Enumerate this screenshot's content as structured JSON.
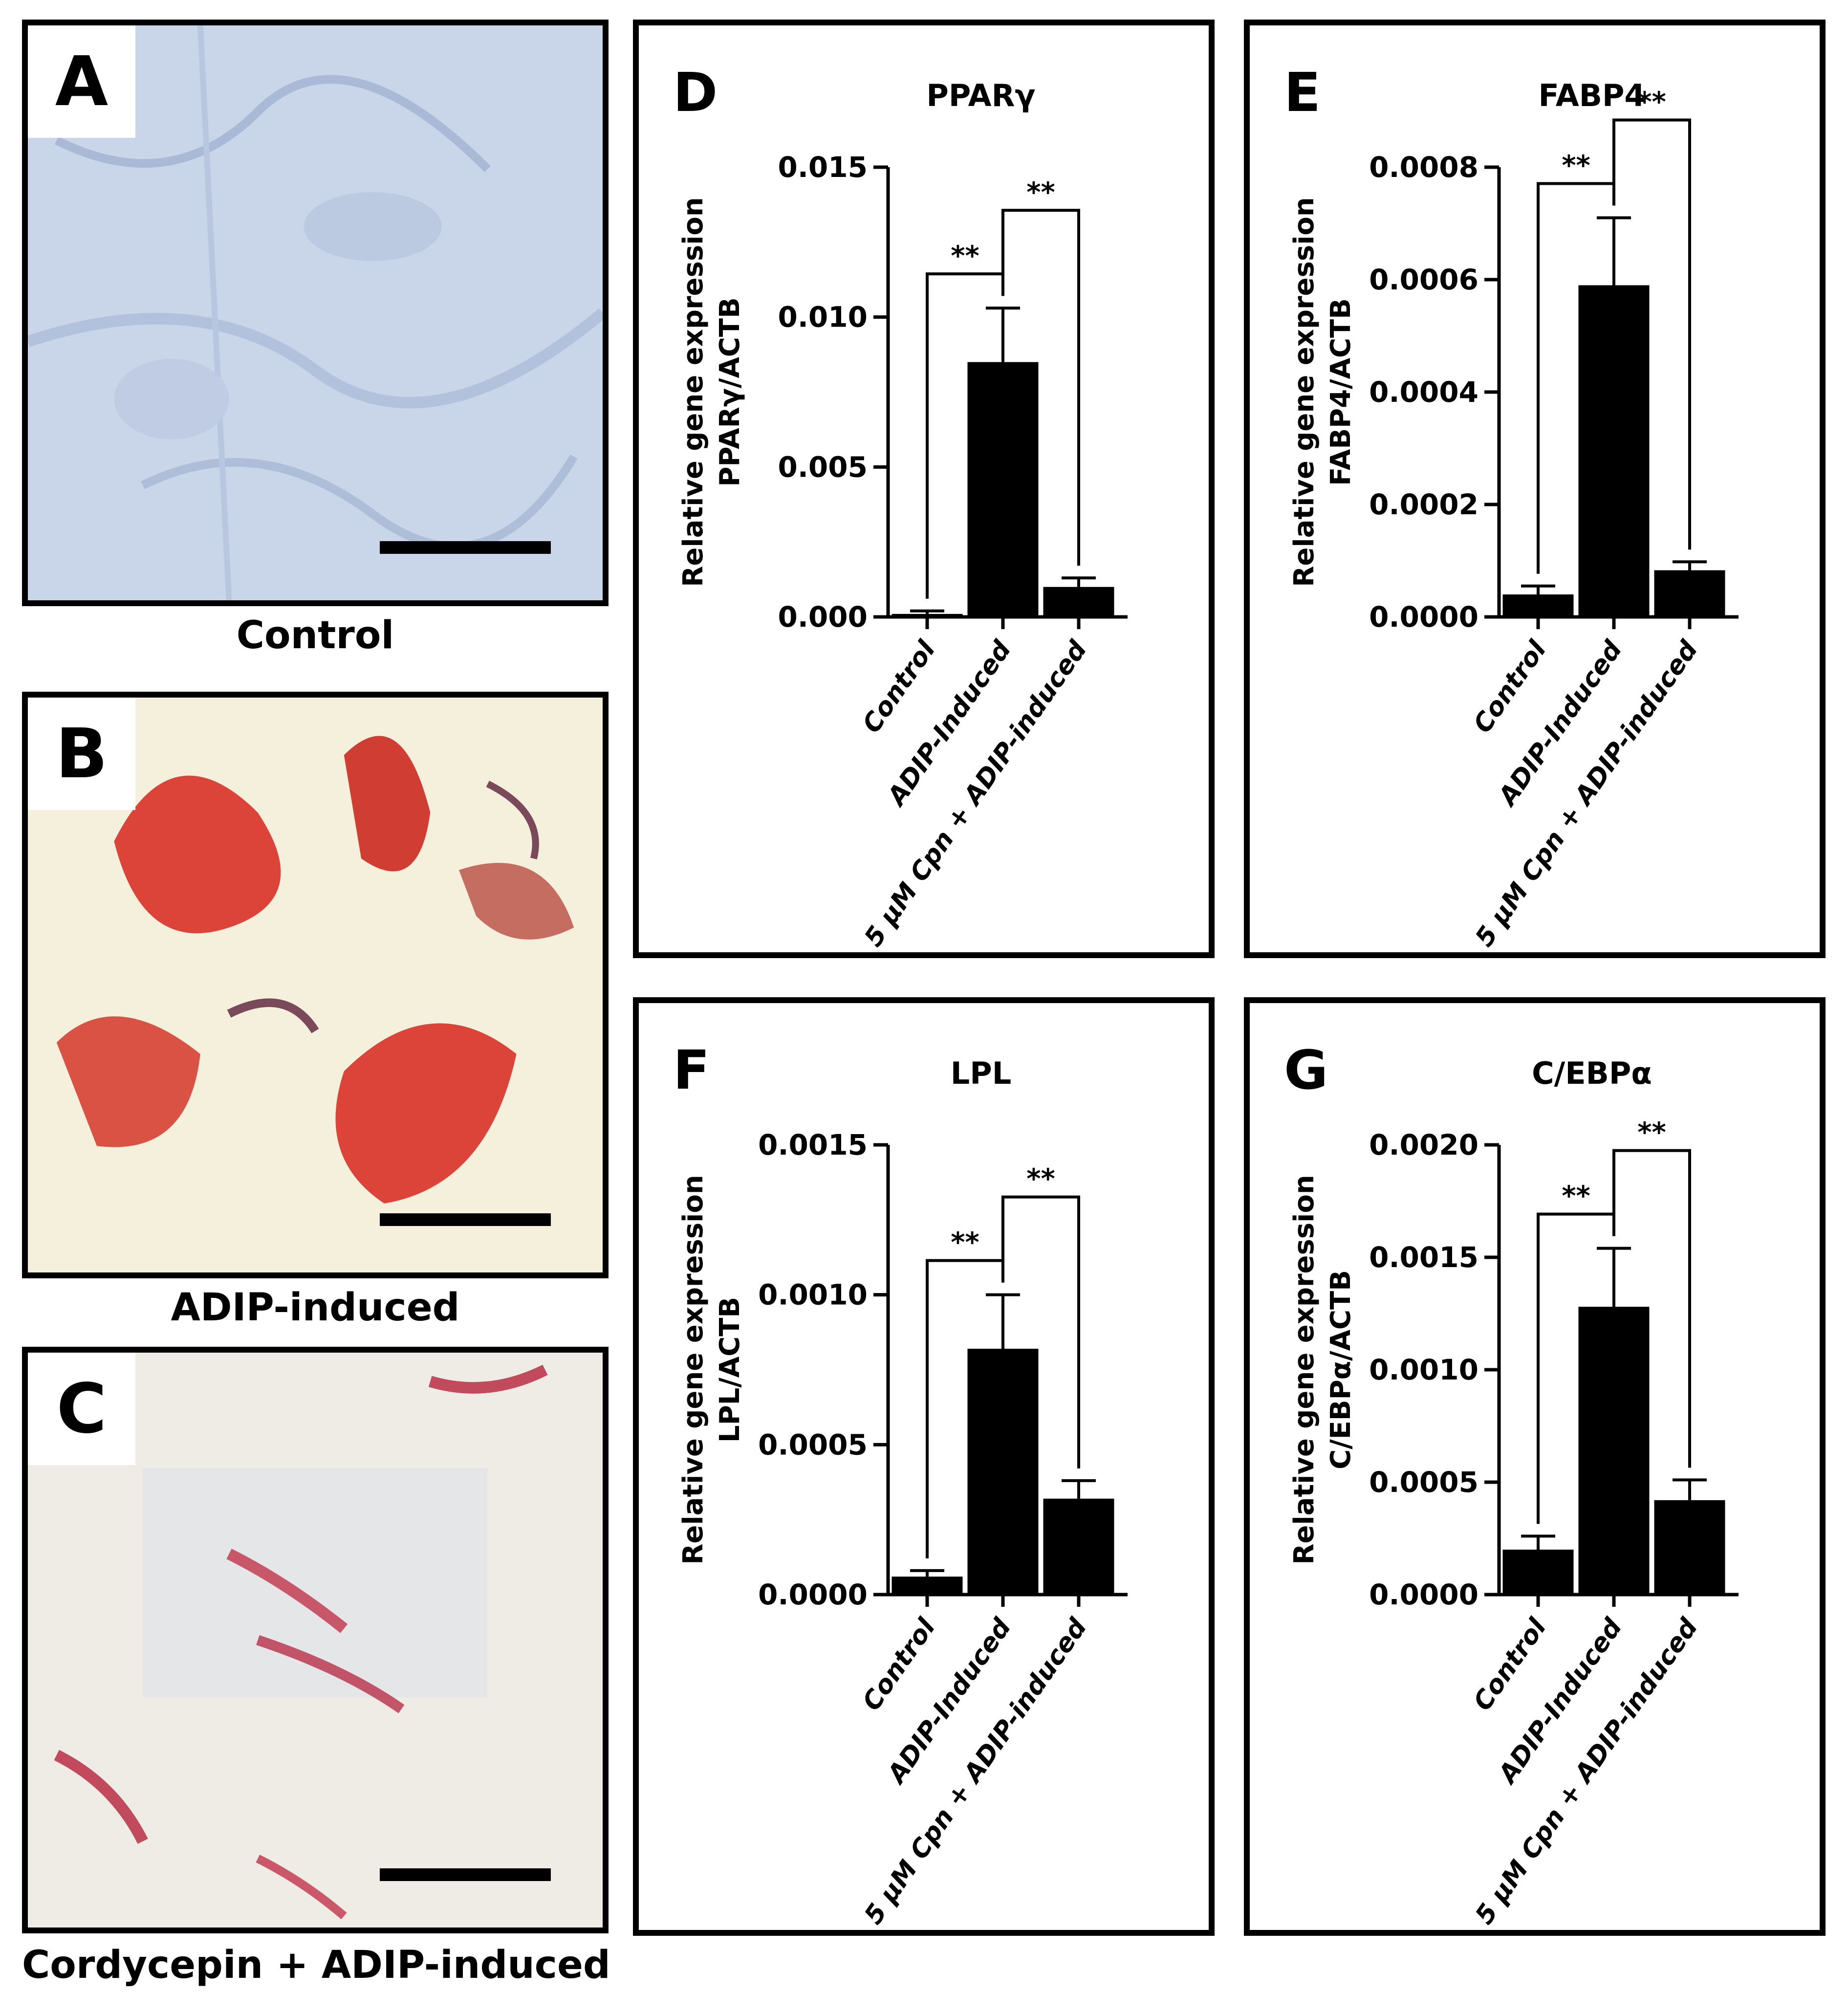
{
  "photos": [
    {
      "letter": "A",
      "caption": "Control"
    },
    {
      "letter": "B",
      "caption": "ADIP-induced"
    },
    {
      "letter": "C",
      "caption": "Cordycepin + ADIP-induced"
    }
  ],
  "colors": {
    "bar": "#000000",
    "lipid_stain": "#d8261c",
    "control_bg": "#c7d3e6"
  },
  "chart_data": [
    {
      "panel": "D",
      "type": "bar",
      "title": "PPARγ",
      "ylabel": [
        "Relative gene expression",
        "PPARγ/ACTB"
      ],
      "categories": [
        "Control",
        "ADIP-Induced",
        "5 μM Cpn + ADIP-induced"
      ],
      "values": [
        0.0001,
        0.0085,
        0.001
      ],
      "errors": [
        0.0001,
        0.0018,
        0.0003
      ],
      "ylim": [
        0,
        0.015
      ],
      "ticks": [
        "0.000",
        "0.005",
        "0.010",
        "0.015"
      ],
      "significance": [
        {
          "from": 0,
          "to": 1,
          "label": "**"
        },
        {
          "from": 1,
          "to": 2,
          "label": "**"
        }
      ]
    },
    {
      "panel": "E",
      "type": "bar",
      "title": "FABP4",
      "ylabel": [
        "Relative gene expression",
        "FABP4/ACTB"
      ],
      "categories": [
        "Control",
        "ADIP-Induced",
        "5 μM Cpn + ADIP-induced"
      ],
      "values": [
        4e-05,
        0.00059,
        8.3e-05
      ],
      "errors": [
        1.5e-05,
        0.00012,
        1.5e-05
      ],
      "ylim": [
        0,
        0.0008
      ],
      "ticks": [
        "0.0000",
        "0.0002",
        "0.0004",
        "0.0006",
        "0.0008"
      ],
      "significance": [
        {
          "from": 0,
          "to": 1,
          "label": "**"
        },
        {
          "from": 1,
          "to": 2,
          "label": "**"
        }
      ]
    },
    {
      "panel": "F",
      "type": "bar",
      "title": "LPL",
      "ylabel": [
        "Relative gene expression",
        "LPL/ACTB"
      ],
      "categories": [
        "Control",
        "ADIP-Induced",
        "5 μM Cpn + ADIP-induced"
      ],
      "values": [
        6e-05,
        0.00082,
        0.00032
      ],
      "errors": [
        2e-05,
        0.00018,
        6e-05
      ],
      "ylim": [
        0,
        0.0015
      ],
      "ticks": [
        "0.0000",
        "0.0005",
        "0.0010",
        "0.0015"
      ],
      "significance": [
        {
          "from": 0,
          "to": 1,
          "label": "**"
        },
        {
          "from": 1,
          "to": 2,
          "label": "**"
        }
      ]
    },
    {
      "panel": "G",
      "type": "bar",
      "title": "C/EBPα",
      "ylabel": [
        "Relative gene expression",
        "C/EBPα/ACTB"
      ],
      "categories": [
        "Control",
        "ADIP-Induced",
        "5 μM Cpn + ADIP-induced"
      ],
      "values": [
        0.0002,
        0.00128,
        0.00042
      ],
      "errors": [
        6e-05,
        0.00026,
        9e-05
      ],
      "ylim": [
        0,
        0.002
      ],
      "ticks": [
        "0.0000",
        "0.0005",
        "0.0010",
        "0.0015",
        "0.0020"
      ],
      "significance": [
        {
          "from": 0,
          "to": 1,
          "label": "**"
        },
        {
          "from": 1,
          "to": 2,
          "label": "**"
        }
      ]
    }
  ]
}
